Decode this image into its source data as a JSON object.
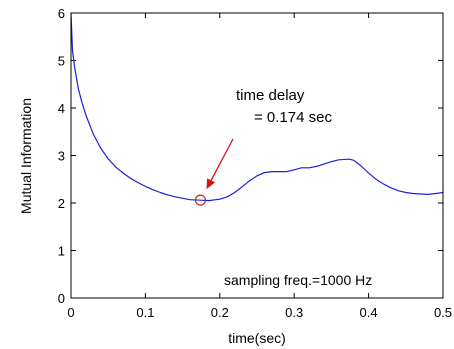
{
  "chart_data": {
    "type": "line",
    "xlabel": "time(sec)",
    "ylabel": "Mutual Information",
    "xlim": [
      0,
      0.5
    ],
    "ylim": [
      0,
      6
    ],
    "x_ticks": [
      0,
      0.1,
      0.2,
      0.3,
      0.4,
      0.5
    ],
    "x_tick_labels": [
      "0",
      "0.1",
      "0.2",
      "0.3",
      "0.4",
      "0.5"
    ],
    "y_ticks": [
      0,
      1,
      2,
      3,
      4,
      5,
      6
    ],
    "y_tick_labels": [
      "0",
      "1",
      "2",
      "3",
      "4",
      "5",
      "6"
    ],
    "grid": false,
    "series": [
      {
        "color": "#1f1fd6",
        "x": [
          0,
          0.002,
          0.005,
          0.01,
          0.015,
          0.02,
          0.03,
          0.04,
          0.05,
          0.06,
          0.07,
          0.08,
          0.09,
          0.1,
          0.11,
          0.12,
          0.13,
          0.14,
          0.15,
          0.16,
          0.174,
          0.185,
          0.2,
          0.21,
          0.22,
          0.23,
          0.24,
          0.25,
          0.26,
          0.27,
          0.28,
          0.29,
          0.3,
          0.31,
          0.32,
          0.33,
          0.34,
          0.35,
          0.36,
          0.37,
          0.375,
          0.38,
          0.39,
          0.4,
          0.41,
          0.42,
          0.43,
          0.44,
          0.45,
          0.46,
          0.47,
          0.48,
          0.49,
          0.5
        ],
        "y": [
          6.0,
          5.2,
          4.85,
          4.4,
          4.1,
          3.85,
          3.45,
          3.15,
          2.93,
          2.76,
          2.63,
          2.52,
          2.43,
          2.35,
          2.28,
          2.22,
          2.17,
          2.13,
          2.1,
          2.07,
          2.06,
          2.05,
          2.08,
          2.13,
          2.22,
          2.34,
          2.47,
          2.57,
          2.64,
          2.66,
          2.66,
          2.66,
          2.7,
          2.74,
          2.74,
          2.77,
          2.82,
          2.87,
          2.91,
          2.92,
          2.92,
          2.9,
          2.78,
          2.63,
          2.5,
          2.4,
          2.32,
          2.26,
          2.22,
          2.2,
          2.19,
          2.18,
          2.2,
          2.22
        ]
      }
    ],
    "marker": {
      "x": 0.174,
      "y": 2.06,
      "shape": "circle",
      "color": "#cc2222"
    },
    "annotations": [
      {
        "line1": "time delay",
        "line2": "= 0.174 sec"
      },
      {
        "text": "sampling freq.=1000 Hz"
      }
    ],
    "arrow_color": "#dd1111"
  }
}
